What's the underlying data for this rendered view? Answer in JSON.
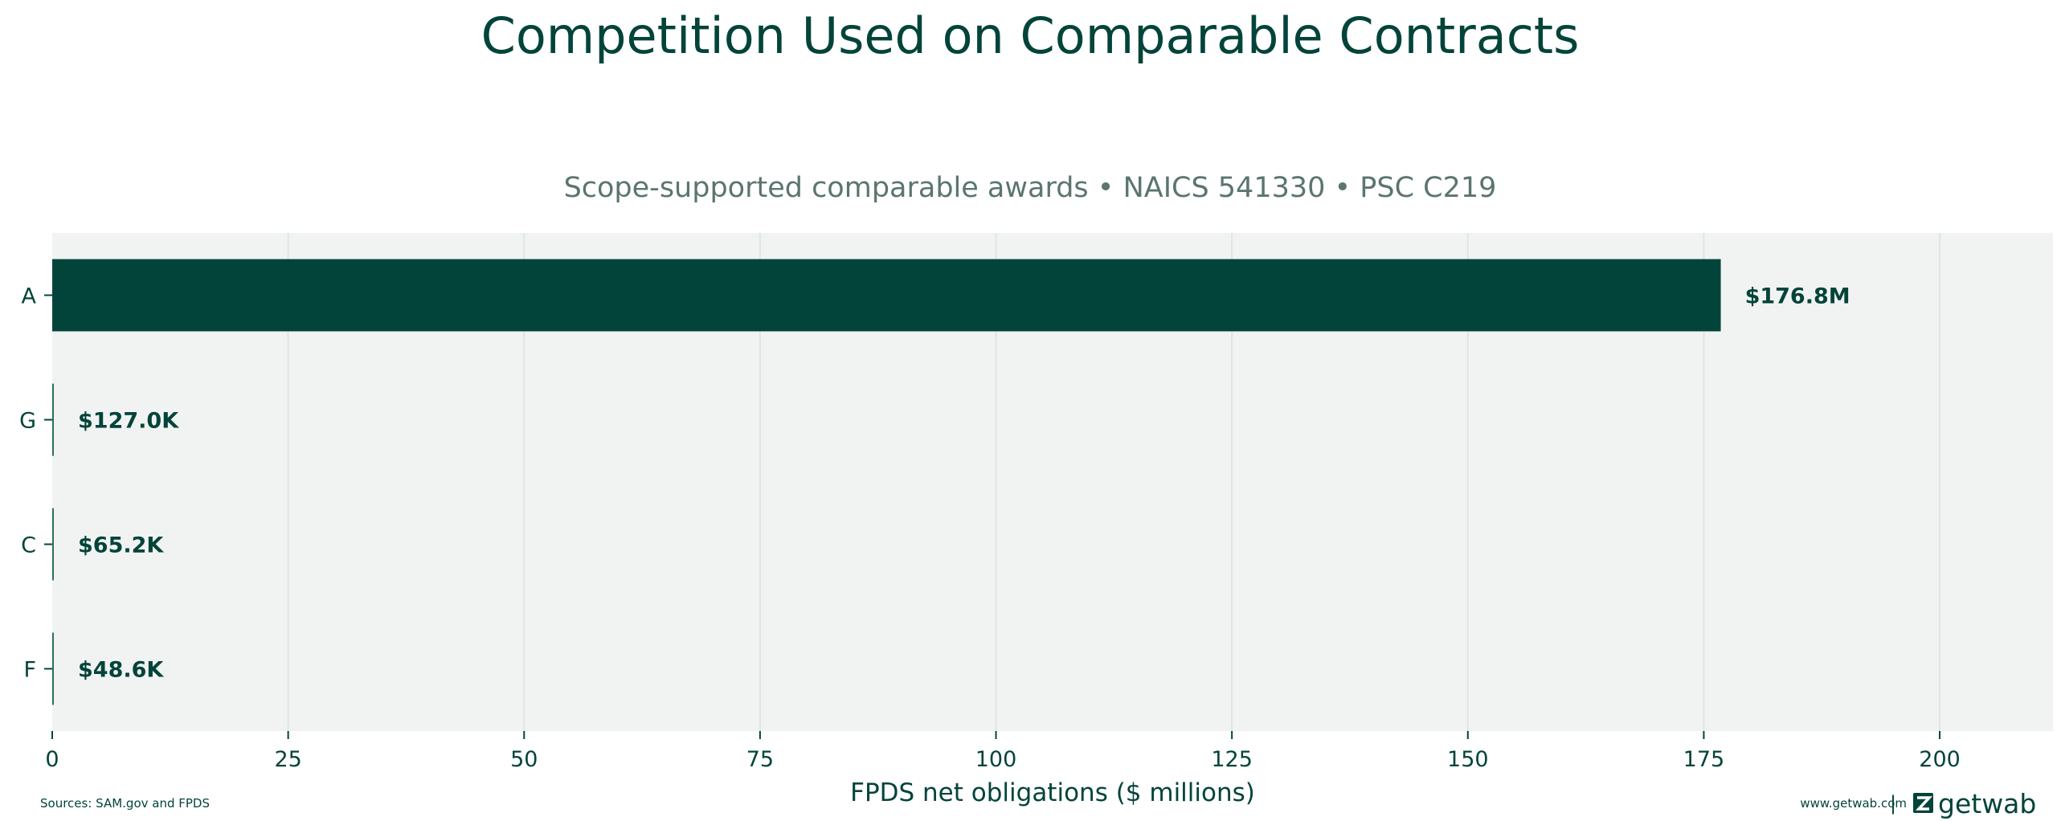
{
  "chart_data": {
    "type": "bar",
    "orientation": "horizontal",
    "title": "Competition Used on Comparable Contracts",
    "subtitle": "Scope-supported comparable awards • NAICS 541330 • PSC C219",
    "xlabel": "FPDS net obligations ($ millions)",
    "ylabel": "",
    "categories": [
      "A",
      "G",
      "C",
      "F"
    ],
    "values": [
      176.8,
      0.127,
      0.0652,
      0.0486
    ],
    "value_labels": [
      "$176.8M",
      "$127.0K",
      "$65.2K",
      "$48.6K"
    ],
    "xlim": [
      0,
      212
    ],
    "xticks": [
      0,
      25,
      50,
      75,
      100,
      125,
      150,
      175,
      200
    ],
    "grid": "vertical",
    "legend": "none"
  },
  "colors": {
    "bar_primary": "#03443a",
    "bar_secondary": "#2f6e5f",
    "plot_background": "#f1f3f2",
    "grid": "#dde6e2",
    "text": "#03443a",
    "subtitle": "#5b7570"
  },
  "footer": {
    "source": "Sources: SAM.gov and FPDS",
    "website": "www.getwab.com",
    "separator": "|",
    "brand": "getwab",
    "brand_icon": "getwab-logo-icon"
  }
}
